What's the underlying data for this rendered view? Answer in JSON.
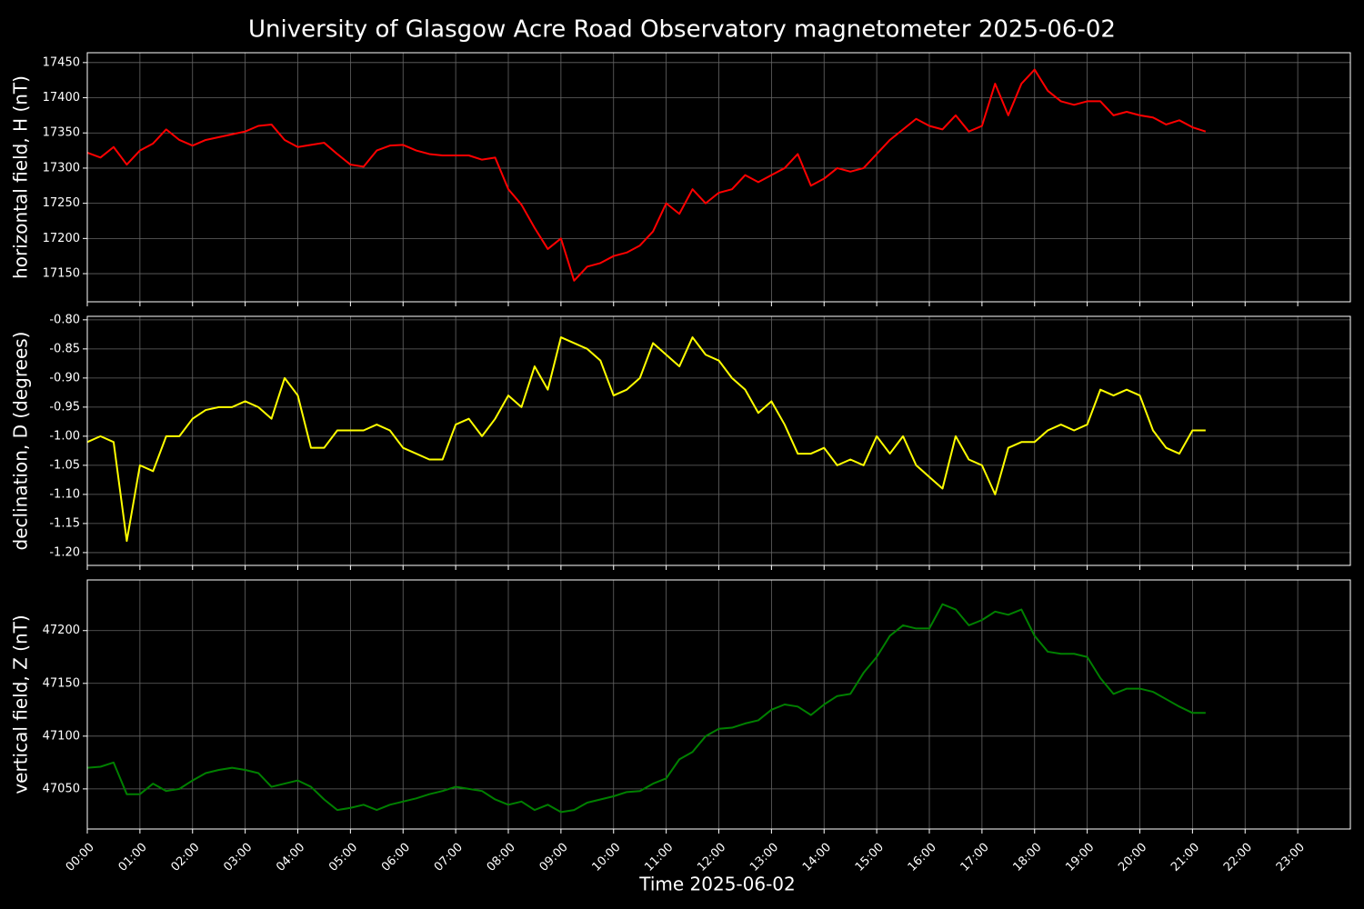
{
  "title": "University of Glasgow Acre Road Observatory magnetometer 2025-06-02",
  "x_label": "Time 2025-06-02",
  "xlim": [
    0,
    24
  ],
  "xticks": [
    {
      "value": 0,
      "label": "00:00"
    },
    {
      "value": 1,
      "label": "01:00"
    },
    {
      "value": 2,
      "label": "02:00"
    },
    {
      "value": 3,
      "label": "03:00"
    },
    {
      "value": 4,
      "label": "04:00"
    },
    {
      "value": 5,
      "label": "05:00"
    },
    {
      "value": 6,
      "label": "06:00"
    },
    {
      "value": 7,
      "label": "07:00"
    },
    {
      "value": 8,
      "label": "08:00"
    },
    {
      "value": 9,
      "label": "09:00"
    },
    {
      "value": 10,
      "label": "10:00"
    },
    {
      "value": 11,
      "label": "11:00"
    },
    {
      "value": 12,
      "label": "12:00"
    },
    {
      "value": 13,
      "label": "13:00"
    },
    {
      "value": 14,
      "label": "14:00"
    },
    {
      "value": 15,
      "label": "15:00"
    },
    {
      "value": 16,
      "label": "16:00"
    },
    {
      "value": 17,
      "label": "17:00"
    },
    {
      "value": 18,
      "label": "18:00"
    },
    {
      "value": 19,
      "label": "19:00"
    },
    {
      "value": 20,
      "label": "20:00"
    },
    {
      "value": 21,
      "label": "21:00"
    },
    {
      "value": 22,
      "label": "22:00"
    },
    {
      "value": 23,
      "label": "23:00"
    }
  ],
  "x": [
    0,
    0.25,
    0.5,
    0.75,
    1,
    1.25,
    1.5,
    1.75,
    2,
    2.25,
    2.5,
    2.75,
    3,
    3.25,
    3.5,
    3.75,
    4,
    4.25,
    4.5,
    4.75,
    5,
    5.25,
    5.5,
    5.75,
    6,
    6.25,
    6.5,
    6.75,
    7,
    7.25,
    7.5,
    7.75,
    8,
    8.25,
    8.5,
    8.75,
    9,
    9.25,
    9.5,
    9.75,
    10,
    10.25,
    10.5,
    10.75,
    11,
    11.25,
    11.5,
    11.75,
    12,
    12.25,
    12.5,
    12.75,
    13,
    13.25,
    13.5,
    13.75,
    14,
    14.25,
    14.5,
    14.75,
    15,
    15.25,
    15.5,
    15.75,
    16,
    16.25,
    16.5,
    16.75,
    17,
    17.25,
    17.5,
    17.75,
    18,
    18.25,
    18.5,
    18.75,
    19,
    19.25,
    19.5,
    19.75,
    20,
    20.25,
    20.5,
    20.75,
    21,
    21.25
  ],
  "chart_data": [
    {
      "type": "line",
      "y_label": "horizontal field, H (nT)",
      "color": "#ff0000",
      "grid": true,
      "ylim": [
        17110,
        17464
      ],
      "yticks": [
        17150,
        17200,
        17250,
        17300,
        17350,
        17400,
        17450
      ],
      "values": [
        17322,
        17315,
        17330,
        17305,
        17325,
        17335,
        17355,
        17340,
        17332,
        17340,
        17344,
        17348,
        17352,
        17360,
        17362,
        17340,
        17330,
        17333,
        17336,
        17320,
        17305,
        17302,
        17325,
        17332,
        17333,
        17325,
        17320,
        17318,
        17318,
        17318,
        17312,
        17315,
        17270,
        17248,
        17215,
        17185,
        17200,
        17140,
        17160,
        17165,
        17175,
        17180,
        17190,
        17210,
        17250,
        17235,
        17270,
        17250,
        17265,
        17270,
        17290,
        17280,
        17290,
        17300,
        17320,
        17275,
        17285,
        17300,
        17295,
        17300,
        17320,
        17340,
        17355,
        17370,
        17360,
        17355,
        17375,
        17352,
        17360,
        17420,
        17375,
        17420,
        17440,
        17410,
        17395,
        17390,
        17395,
        17395,
        17375,
        17380,
        17375,
        17372,
        17362,
        17368,
        17358,
        17352
      ]
    },
    {
      "type": "line",
      "y_label": "declination, D (degrees)",
      "color": "#ffff00",
      "grid": true,
      "ylim": [
        -1.222,
        -0.794
      ],
      "yticks": [
        {
          "value": -1.2,
          "label": "-1.20"
        },
        {
          "value": -1.15,
          "label": "-1.15"
        },
        {
          "value": -1.1,
          "label": "-1.10"
        },
        {
          "value": -1.05,
          "label": "-1.05"
        },
        {
          "value": -1,
          "label": "-1.00"
        },
        {
          "value": -0.95,
          "label": "-0.95"
        },
        {
          "value": -0.9,
          "label": "-0.90"
        },
        {
          "value": -0.85,
          "label": "-0.85"
        },
        {
          "value": -0.8,
          "label": "-0.80"
        }
      ],
      "values": [
        -1.01,
        -1.0,
        -1.01,
        -1.18,
        -1.05,
        -1.06,
        -1.0,
        -1.0,
        -0.97,
        -0.955,
        -0.95,
        -0.95,
        -0.94,
        -0.95,
        -0.97,
        -0.9,
        -0.93,
        -1.02,
        -1.02,
        -0.99,
        -0.99,
        -0.99,
        -0.98,
        -0.99,
        -1.02,
        -1.03,
        -1.04,
        -1.04,
        -0.98,
        -0.97,
        -1.0,
        -0.97,
        -0.93,
        -0.95,
        -0.88,
        -0.92,
        -0.83,
        -0.84,
        -0.85,
        -0.87,
        -0.93,
        -0.92,
        -0.9,
        -0.84,
        -0.86,
        -0.88,
        -0.83,
        -0.86,
        -0.87,
        -0.9,
        -0.92,
        -0.96,
        -0.94,
        -0.98,
        -1.03,
        -1.03,
        -1.02,
        -1.05,
        -1.04,
        -1.05,
        -1.0,
        -1.03,
        -1.0,
        -1.05,
        -1.07,
        -1.09,
        -1.0,
        -1.04,
        -1.05,
        -1.1,
        -1.02,
        -1.01,
        -1.01,
        -0.99,
        -0.98,
        -0.99,
        -0.98,
        -0.92,
        -0.93,
        -0.92,
        -0.93,
        -0.99,
        -1.02,
        -1.03,
        -0.99,
        -0.99
      ]
    },
    {
      "type": "line",
      "y_label": "vertical field, Z (nT)",
      "color": "#008000",
      "grid": true,
      "ylim": [
        47012,
        47248
      ],
      "yticks": [
        47050,
        47100,
        47150,
        47200
      ],
      "values": [
        47070,
        47071,
        47075,
        47045,
        47045,
        47055,
        47048,
        47050,
        47058,
        47065,
        47068,
        47070,
        47068,
        47065,
        47052,
        47055,
        47058,
        47052,
        47040,
        47030,
        47032,
        47035,
        47030,
        47035,
        47038,
        47041,
        47045,
        47048,
        47052,
        47050,
        47048,
        47040,
        47035,
        47038,
        47030,
        47035,
        47028,
        47030,
        47037,
        47040,
        47043,
        47047,
        47048,
        47055,
        47060,
        47078,
        47085,
        47100,
        47107,
        47108,
        47112,
        47115,
        47125,
        47130,
        47128,
        47120,
        47130,
        47138,
        47140,
        47160,
        47175,
        47195,
        47205,
        47202,
        47202,
        47225,
        47220,
        47205,
        47210,
        47218,
        47215,
        47220,
        47195,
        47180,
        47178,
        47178,
        47175,
        47155,
        47140,
        47145,
        47145,
        47142,
        47135,
        47128,
        47122,
        47122
      ]
    }
  ]
}
